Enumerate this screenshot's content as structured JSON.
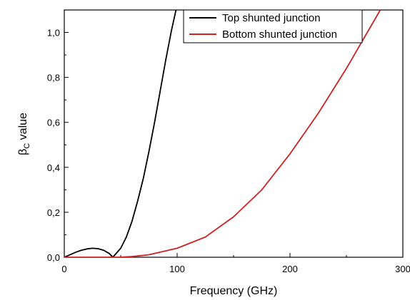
{
  "chart_data": {
    "type": "line",
    "xlabel": "Frequency (GHz)",
    "ylabel_main": "β",
    "ylabel_sub": "C",
    "ylabel_rest": " value",
    "xlim": [
      0,
      300
    ],
    "ylim": [
      0.0,
      1.1
    ],
    "x_ticks": [
      0,
      100,
      200,
      300
    ],
    "x_tick_labels": [
      "0",
      "100",
      "200",
      "300"
    ],
    "y_ticks": [
      0.0,
      0.2,
      0.4,
      0.6,
      0.8,
      1.0
    ],
    "y_tick_labels": [
      "0,0",
      "0,2",
      "0,4",
      "0,6",
      "0,8",
      "1,0"
    ],
    "grid": false,
    "legend_position": "top-right",
    "series": [
      {
        "name": "Top shunted junction",
        "color": "#000000",
        "points": [
          [
            0,
            0.0
          ],
          [
            5,
            0.011
          ],
          [
            10,
            0.022
          ],
          [
            15,
            0.031
          ],
          [
            20,
            0.037
          ],
          [
            25,
            0.04
          ],
          [
            30,
            0.038
          ],
          [
            35,
            0.031
          ],
          [
            40,
            0.016
          ],
          [
            43,
            0.0
          ],
          [
            50,
            0.04
          ],
          [
            55,
            0.09
          ],
          [
            60,
            0.16
          ],
          [
            65,
            0.25
          ],
          [
            70,
            0.35
          ],
          [
            75,
            0.47
          ],
          [
            80,
            0.6
          ],
          [
            85,
            0.74
          ],
          [
            90,
            0.88
          ],
          [
            95,
            1.01
          ],
          [
            99,
            1.1
          ]
        ]
      },
      {
        "name": "Bottom shunted junction",
        "color": "#cc2222",
        "points": [
          [
            0,
            0.0
          ],
          [
            20,
            0.0
          ],
          [
            48,
            0.0
          ],
          [
            60,
            0.003
          ],
          [
            75,
            0.011
          ],
          [
            100,
            0.04
          ],
          [
            125,
            0.09
          ],
          [
            150,
            0.18
          ],
          [
            175,
            0.3
          ],
          [
            200,
            0.46
          ],
          [
            225,
            0.64
          ],
          [
            250,
            0.84
          ],
          [
            265,
            0.97
          ],
          [
            280,
            1.1
          ]
        ]
      }
    ]
  }
}
